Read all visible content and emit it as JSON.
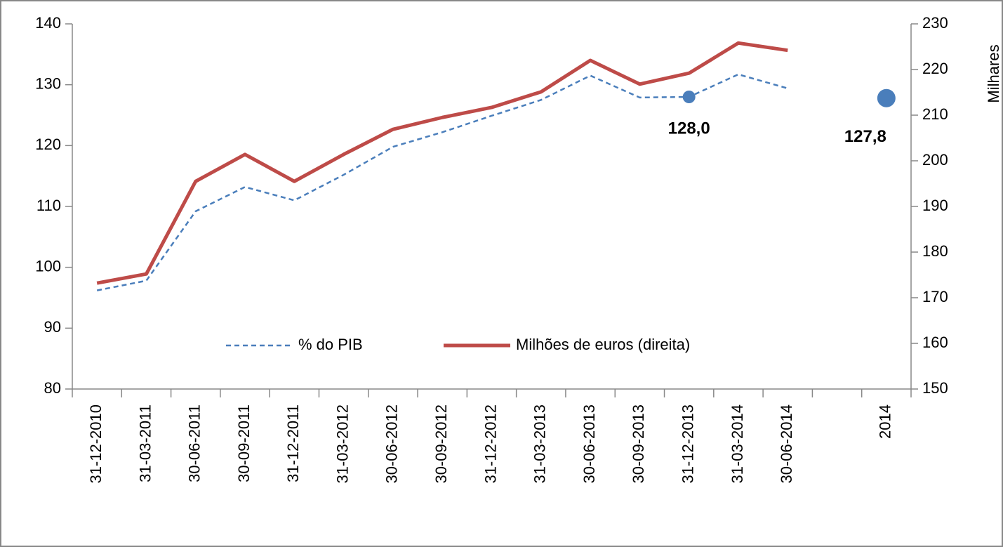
{
  "chart_data": {
    "type": "line",
    "categories": [
      "31-12-2010",
      "31-03-2011",
      "30-06-2011",
      "30-09-2011",
      "31-12-2011",
      "31-03-2012",
      "30-06-2012",
      "30-09-2012",
      "31-12-2012",
      "31-03-2013",
      "30-06-2013",
      "30-09-2013",
      "31-12-2013",
      "31-03-2014",
      "30-06-2014",
      null,
      "2014"
    ],
    "series": [
      {
        "name": "% do PIB",
        "color": "#4a7ebb",
        "dashed": true,
        "values": [
          96.2,
          97.8,
          109.2,
          113.2,
          111.0,
          115.2,
          119.8,
          122.2,
          124.9,
          127.5,
          131.5,
          127.9,
          128.0,
          131.7,
          129.4,
          null,
          127.8
        ],
        "value_labels": [
          null,
          null,
          null,
          null,
          null,
          null,
          null,
          null,
          null,
          null,
          null,
          null,
          "128,0",
          null,
          null,
          null,
          "127,8"
        ]
      },
      {
        "name": "Milhões de euros (direita)",
        "color": "#be4b48",
        "axis": "y2",
        "values": [
          173.2,
          175.2,
          195.5,
          201.4,
          195.5,
          201.4,
          206.9,
          209.5,
          211.7,
          215.1,
          222.0,
          216.8,
          219.2,
          225.8,
          224.2,
          null,
          null
        ]
      }
    ],
    "ylim": [
      80,
      140
    ],
    "yticks": [
      80,
      90,
      100,
      110,
      120,
      130,
      140
    ],
    "y2lim": [
      150,
      230
    ],
    "y2ticks": [
      150,
      160,
      170,
      180,
      190,
      200,
      210,
      220,
      230
    ],
    "y2label": "Milhares"
  }
}
